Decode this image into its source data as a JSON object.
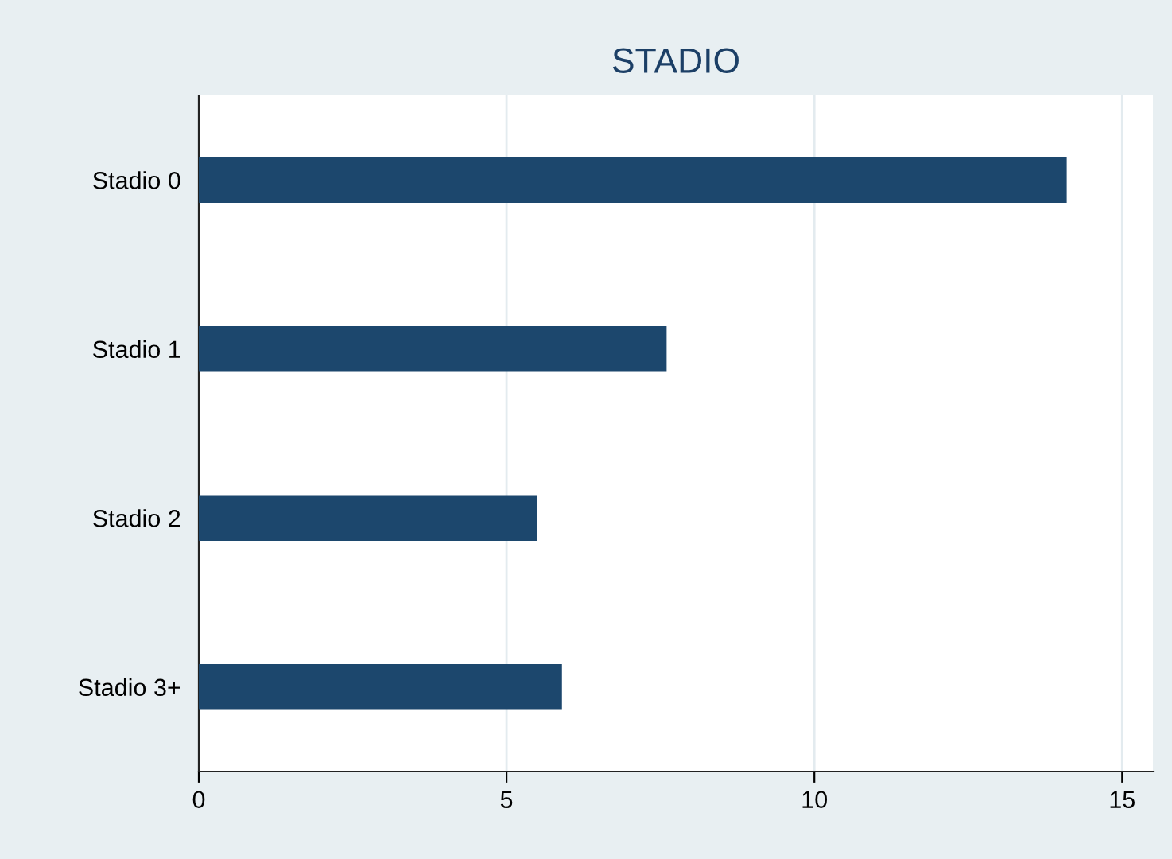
{
  "chart_data": {
    "type": "bar",
    "orientation": "horizontal",
    "title": "STADIO",
    "categories": [
      "Stadio 0",
      "Stadio 1",
      "Stadio 2",
      "Stadio 3+"
    ],
    "values": [
      14.1,
      7.6,
      5.5,
      5.9
    ],
    "color": "#1c476d",
    "xlim": [
      0,
      15.5
    ],
    "xticks": [
      0,
      5,
      10,
      15
    ],
    "grid": "x"
  }
}
